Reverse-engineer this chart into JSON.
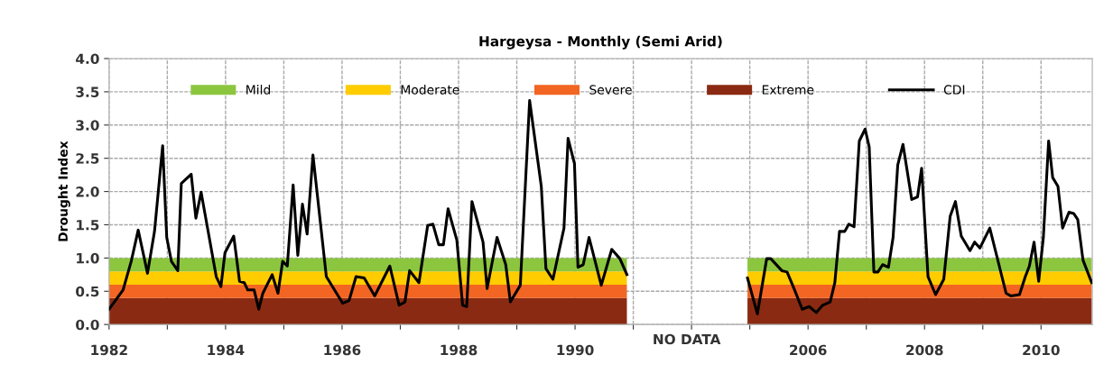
{
  "chart_data": [
    {
      "type": "line",
      "title": "Hargeysa - Monthly (Semi Arid)",
      "ylabel": "Drought Index",
      "stacked": true,
      "annotations": [
        "NO DATA"
      ],
      "xlim": [
        1982,
        1992.5
      ],
      "ylim": [
        0,
        4
      ],
      "xticks": [
        1982,
        {
          "value": 1983,
          "label": null
        },
        1984,
        {
          "value": 1985,
          "label": null
        },
        1986,
        {
          "value": 1987,
          "label": null
        },
        1988,
        {
          "value": 1989,
          "label": null
        },
        1990,
        {
          "value": 1991,
          "label": null
        },
        {
          "value": 1992,
          "label": null
        }
      ],
      "yticks": [
        {
          "value": 0,
          "label": "0.0"
        },
        {
          "value": 0.5,
          "label": "0.5"
        },
        {
          "value": 1,
          "label": "1.0"
        },
        {
          "value": 1.5,
          "label": "1.5"
        },
        {
          "value": 2,
          "label": "2.0"
        },
        {
          "value": 2.5,
          "label": "2.5"
        },
        {
          "value": 3,
          "label": "3.0"
        },
        {
          "value": 3.5,
          "label": "3.5"
        },
        {
          "value": 4,
          "label": "4.0"
        }
      ],
      "grid": true,
      "legend": "top",
      "series": [
        {
          "name": "Extreme",
          "type": "area",
          "color": "#8b2a12",
          "x": [
            1982,
            1990.89
          ],
          "values": [
            0.4,
            0.4
          ]
        },
        {
          "name": "Severe",
          "type": "area",
          "color": "#f26522",
          "x": [
            1982,
            1990.89
          ],
          "values": [
            0.2,
            0.2
          ]
        },
        {
          "name": "Moderate",
          "type": "area",
          "color": "#ffcc00",
          "x": [
            1982,
            1990.89
          ],
          "values": [
            0.2,
            0.2
          ]
        },
        {
          "name": "Mild",
          "type": "area",
          "color": "#8cc63f",
          "x": [
            1982,
            1990.89
          ],
          "values": [
            0.2,
            0.2
          ]
        },
        {
          "name": "CDI",
          "color": "#000000",
          "x": [
            1982.0,
            1982.24,
            1982.38,
            1982.5,
            1982.66,
            1982.78,
            1982.92,
            1982.99,
            1983.07,
            1983.18,
            1983.24,
            1983.41,
            1983.49,
            1983.58,
            1983.84,
            1983.92,
            1983.99,
            1984.14,
            1984.24,
            1984.32,
            1984.38,
            1984.49,
            1984.57,
            1984.64,
            1984.8,
            1984.9,
            1984.98,
            1985.06,
            1985.16,
            1985.24,
            1985.32,
            1985.4,
            1985.5,
            1985.73,
            1986.01,
            1986.12,
            1986.24,
            1986.38,
            1986.56,
            1986.82,
            1986.98,
            1987.08,
            1987.16,
            1987.32,
            1987.47,
            1987.56,
            1987.66,
            1987.74,
            1987.82,
            1987.97,
            1988.07,
            1988.14,
            1988.23,
            1988.42,
            1988.49,
            1988.66,
            1988.81,
            1988.89,
            1989.06,
            1989.22,
            1989.42,
            1989.5,
            1989.62,
            1989.81,
            1989.88,
            1989.99,
            1990.05,
            1990.14,
            1990.24,
            1990.45,
            1990.63,
            1990.77,
            1990.89
          ],
          "values": [
            0.23,
            0.52,
            0.95,
            1.42,
            0.77,
            1.4,
            2.69,
            1.31,
            0.95,
            0.81,
            2.12,
            2.26,
            1.6,
            1.99,
            0.72,
            0.57,
            1.08,
            1.33,
            0.65,
            0.63,
            0.52,
            0.52,
            0.23,
            0.47,
            0.75,
            0.47,
            0.95,
            0.88,
            2.1,
            1.04,
            1.81,
            1.36,
            2.55,
            0.72,
            0.32,
            0.36,
            0.72,
            0.7,
            0.43,
            0.88,
            0.29,
            0.34,
            0.81,
            0.63,
            1.49,
            1.51,
            1.2,
            1.2,
            1.74,
            1.27,
            0.29,
            0.27,
            1.85,
            1.24,
            0.54,
            1.31,
            0.9,
            0.34,
            0.59,
            3.37,
            2.08,
            0.84,
            0.68,
            1.45,
            2.8,
            2.42,
            0.86,
            0.9,
            1.31,
            0.59,
            1.13,
            0.99,
            0.75
          ]
        }
      ]
    },
    {
      "type": "line",
      "stacked": true,
      "tick_labels": "x",
      "xlim": [
        2004.5,
        2010.88
      ],
      "ylim": [
        0,
        4
      ],
      "xticks": [
        {
          "value": 2005,
          "label": null
        },
        2006,
        {
          "value": 2007,
          "label": null
        },
        2008,
        {
          "value": 2009,
          "label": null
        },
        2010
      ],
      "yticks": [
        0,
        0.5,
        1,
        1.5,
        2,
        2.5,
        3,
        3.5,
        4
      ],
      "grid": true,
      "series": [
        {
          "type": "area",
          "color": "#8b2a12",
          "x": [
            2004.96,
            2010.87
          ],
          "values": [
            0.4,
            0.4
          ]
        },
        {
          "type": "area",
          "color": "#f26522",
          "x": [
            2004.96,
            2010.87
          ],
          "values": [
            0.2,
            0.2
          ]
        },
        {
          "type": "area",
          "color": "#ffcc00",
          "x": [
            2004.96,
            2010.87
          ],
          "values": [
            0.2,
            0.2
          ]
        },
        {
          "type": "area",
          "color": "#8cc63f",
          "x": [
            2004.96,
            2010.87
          ],
          "values": [
            0.2,
            0.2
          ]
        },
        {
          "color": "#000000",
          "x": [
            2004.96,
            2005.13,
            2005.29,
            2005.36,
            2005.55,
            2005.64,
            2005.76,
            2005.9,
            2006.02,
            2006.14,
            2006.25,
            2006.38,
            2006.46,
            2006.54,
            2006.63,
            2006.7,
            2006.79,
            2006.88,
            2006.98,
            2007.05,
            2007.13,
            2007.2,
            2007.28,
            2007.38,
            2007.46,
            2007.54,
            2007.63,
            2007.78,
            2007.88,
            2007.95,
            2008.06,
            2008.19,
            2008.33,
            2008.44,
            2008.53,
            2008.63,
            2008.78,
            2008.86,
            2008.95,
            2009.12,
            2009.4,
            2009.48,
            2009.63,
            2009.73,
            2009.8,
            2009.88,
            2009.96,
            2010.04,
            2010.13,
            2010.2,
            2010.29,
            2010.37,
            2010.48,
            2010.56,
            2010.63,
            2010.72,
            2010.87
          ],
          "values": [
            0.7,
            0.16,
            0.99,
            0.99,
            0.81,
            0.79,
            0.54,
            0.23,
            0.27,
            0.18,
            0.29,
            0.34,
            0.63,
            1.4,
            1.4,
            1.51,
            1.47,
            2.76,
            2.94,
            2.67,
            0.79,
            0.79,
            0.9,
            0.86,
            1.31,
            2.4,
            2.71,
            1.88,
            1.92,
            2.35,
            0.72,
            0.45,
            0.68,
            1.63,
            1.85,
            1.33,
            1.11,
            1.24,
            1.15,
            1.45,
            0.47,
            0.43,
            0.45,
            0.72,
            0.88,
            1.24,
            0.65,
            1.31,
            2.76,
            2.21,
            2.08,
            1.45,
            1.69,
            1.67,
            1.58,
            0.97,
            0.63
          ]
        }
      ]
    }
  ]
}
